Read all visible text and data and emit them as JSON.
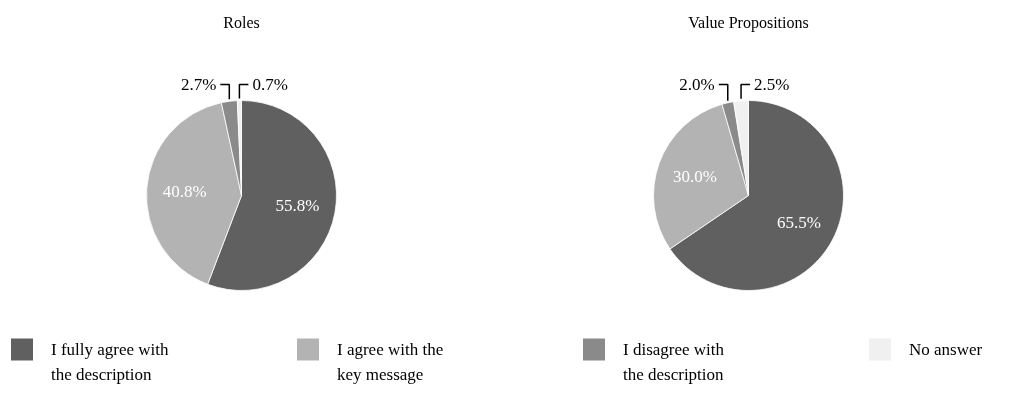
{
  "chart_data": [
    {
      "type": "pie",
      "title": "Roles",
      "categories": [
        "I fully agree with\nthe description",
        "I agree with the\nkey message",
        "I disagree with\nthe description",
        "No answer"
      ],
      "values": [
        55.8,
        40.8,
        2.7,
        0.7
      ],
      "value_labels": [
        "55.8%",
        "40.8%",
        "2.7%",
        "0.7%"
      ],
      "colors": [
        "#606060",
        "#b3b3b3",
        "#8a8a8a",
        "#f0f0f0"
      ],
      "legend": "bottom"
    },
    {
      "type": "pie",
      "title": "Value Propositions",
      "categories": [
        null,
        null,
        null,
        null
      ],
      "values": [
        65.5,
        30.0,
        2.0,
        2.5
      ],
      "value_labels": [
        "65.5%",
        "30.0%",
        "2.0%",
        "2.5%"
      ],
      "colors": [
        "#606060",
        "#b3b3b3",
        "#8a8a8a",
        "#f0f0f0"
      ]
    }
  ]
}
